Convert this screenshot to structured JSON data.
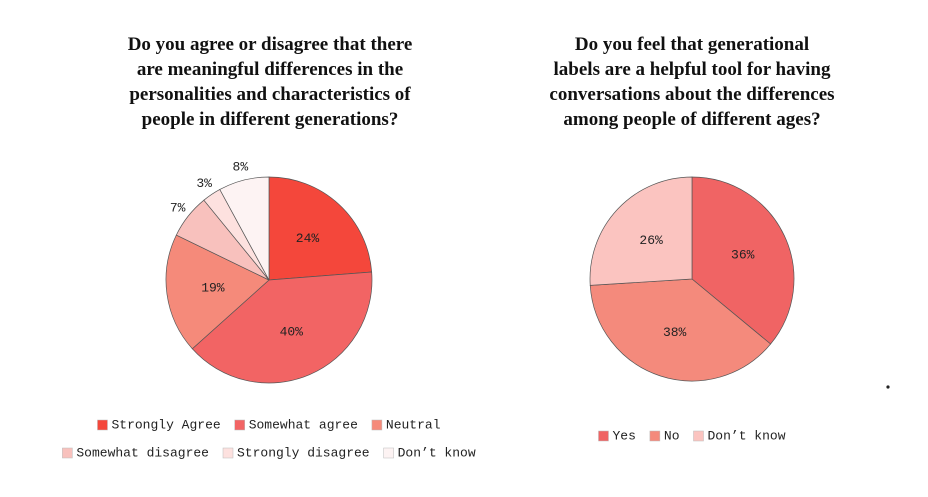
{
  "chart_data": [
    {
      "type": "pie",
      "title": [
        "Do you agree or disagree that there",
        "are meaningful differences in the",
        "personalities and characteristics of",
        "people in different generations?"
      ],
      "categories": [
        "Strongly Agree",
        "Somewhat agree",
        "Neutral",
        "Somewhat disagree",
        "Strongly disagree",
        "Don’t know"
      ],
      "values": [
        24,
        40,
        19,
        7,
        3,
        8
      ],
      "value_labels": [
        "24%",
        "40%",
        "19%",
        "7%",
        "3%",
        "8%"
      ],
      "colors": [
        "#f4473b",
        "#f26464",
        "#f58a7a",
        "#f8c1bd",
        "#fde1df",
        "#fdf3f3"
      ]
    },
    {
      "type": "pie",
      "title": [
        "Do you feel that generational",
        "labels are a helpful tool for having",
        "conversations about the differences",
        "among people of different ages?"
      ],
      "categories": [
        "Yes",
        "No",
        "Don’t know"
      ],
      "values": [
        36,
        38,
        26
      ],
      "value_labels": [
        "36%",
        "38%",
        "26%"
      ],
      "colors": [
        "#f06464",
        "#f48a7c",
        "#fbc4c0"
      ]
    }
  ]
}
